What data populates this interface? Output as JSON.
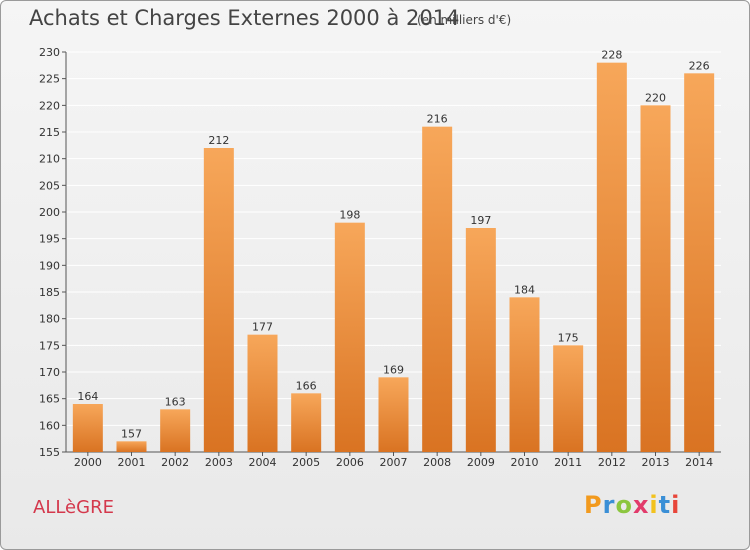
{
  "header": {
    "title": "Achats et Charges Externes 2000 à 2014",
    "subtitle": "(en milliers d'€)"
  },
  "footer": {
    "city": "ALLèGRE",
    "logo_letters": [
      "P",
      "r",
      "o",
      "x",
      "i",
      "t",
      "i"
    ],
    "logo_colors": [
      "#f29a1e",
      "#3a8fd6",
      "#8cc63f",
      "#e23b6b",
      "#f2c21e",
      "#3a8fd6",
      "#e8463a"
    ]
  },
  "colors": {
    "bar_top": "#f7a75a",
    "bar_bottom": "#d97322",
    "grid": "#ffffff",
    "axis": "#555555"
  },
  "chart_data": {
    "type": "bar",
    "title": "Achats et Charges Externes 2000 à 2014",
    "subtitle": "(en milliers d'€)",
    "categories": [
      "2000",
      "2001",
      "2002",
      "2003",
      "2004",
      "2005",
      "2006",
      "2007",
      "2008",
      "2009",
      "2010",
      "2011",
      "2012",
      "2013",
      "2014"
    ],
    "values": [
      164,
      157,
      163,
      212,
      177,
      166,
      198,
      169,
      216,
      197,
      184,
      175,
      228,
      220,
      226
    ],
    "ylim": [
      155,
      230
    ],
    "yticks": [
      155,
      160,
      165,
      170,
      175,
      180,
      185,
      190,
      195,
      200,
      205,
      210,
      215,
      220,
      225,
      230
    ],
    "grid": true,
    "legend": "none"
  }
}
